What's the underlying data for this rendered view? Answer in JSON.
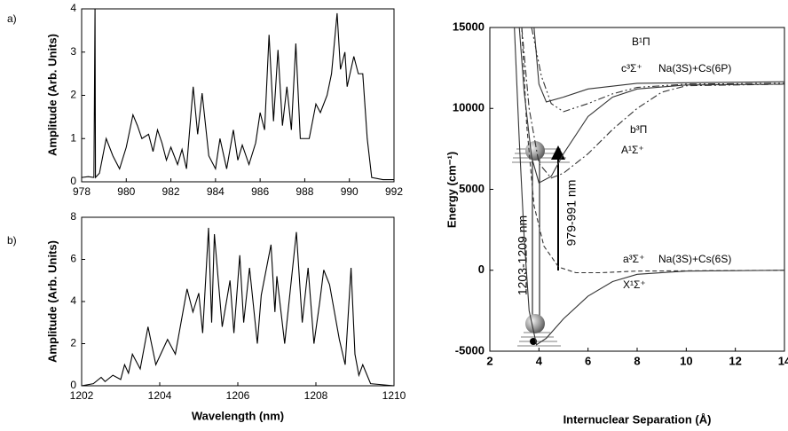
{
  "chart_data": [
    {
      "type": "line",
      "label": "a)",
      "ylabel": "Amplitude (Arb. Units)",
      "xlim": [
        978,
        992
      ],
      "ylim": [
        0,
        4
      ],
      "xticks": [
        978,
        980,
        982,
        984,
        986,
        988,
        990,
        992
      ],
      "yticks": [
        0,
        1,
        2,
        3,
        4
      ],
      "series": [
        {
          "color": "#000000",
          "x": [
            978,
            978.3,
            978.55,
            978.6,
            978.62,
            978.8,
            979.1,
            979.4,
            979.7,
            980.0,
            980.3,
            980.5,
            980.7,
            981.0,
            981.2,
            981.4,
            981.6,
            981.8,
            982.0,
            982.3,
            982.5,
            982.7,
            983.0,
            983.2,
            983.4,
            983.7,
            984.0,
            984.2,
            984.5,
            984.8,
            985.0,
            985.2,
            985.5,
            985.8,
            986.0,
            986.2,
            986.4,
            986.6,
            986.8,
            987.0,
            987.2,
            987.4,
            987.6,
            987.8,
            988.2,
            988.5,
            988.7,
            989.0,
            989.2,
            989.45,
            989.6,
            989.8,
            989.9,
            990.2,
            990.4,
            990.6,
            990.8,
            991.0,
            991.5,
            992
          ],
          "values": [
            0.1,
            0.12,
            0.1,
            4,
            0.1,
            0.2,
            1.0,
            0.6,
            0.3,
            0.8,
            1.55,
            1.3,
            1.0,
            1.1,
            0.7,
            1.2,
            0.9,
            0.5,
            0.8,
            0.4,
            0.75,
            0.3,
            2.2,
            1.1,
            2.05,
            0.6,
            0.3,
            1.0,
            0.3,
            1.2,
            0.5,
            0.85,
            0.4,
            0.9,
            1.6,
            1.2,
            3.4,
            1.4,
            3.05,
            1.3,
            2.2,
            1.2,
            3.2,
            1.0,
            1.0,
            1.8,
            1.6,
            2.0,
            2.5,
            3.9,
            2.6,
            3.0,
            2.2,
            2.9,
            2.5,
            2.5,
            1.0,
            0.1,
            0.05,
            0.05
          ]
        }
      ]
    },
    {
      "type": "line",
      "label": "b)",
      "xlabel": "Wavelength (nm)",
      "ylabel": "Amplitude (Arb. Units)",
      "xlim": [
        1202,
        1210
      ],
      "ylim": [
        0,
        8
      ],
      "xticks": [
        1202,
        1204,
        1206,
        1208,
        1210
      ],
      "yticks": [
        0,
        2,
        4,
        6,
        8
      ],
      "series": [
        {
          "color": "#000000",
          "x": [
            1202,
            1202.3,
            1202.5,
            1202.6,
            1202.8,
            1203.0,
            1203.1,
            1203.2,
            1203.3,
            1203.5,
            1203.7,
            1203.9,
            1204.2,
            1204.4,
            1204.7,
            1204.85,
            1205.0,
            1205.1,
            1205.25,
            1205.33,
            1205.4,
            1205.6,
            1205.8,
            1205.9,
            1206.05,
            1206.15,
            1206.3,
            1206.5,
            1206.6,
            1206.85,
            1206.95,
            1207.0,
            1207.2,
            1207.5,
            1207.65,
            1207.8,
            1207.95,
            1208.1,
            1208.2,
            1208.35,
            1208.6,
            1208.75,
            1208.9,
            1209.0,
            1209.1,
            1209.2,
            1209.4,
            1210
          ],
          "values": [
            0,
            0.1,
            0.4,
            0.2,
            0.5,
            0.3,
            1.0,
            0.6,
            1.5,
            0.8,
            2.8,
            1.0,
            2.2,
            1.5,
            4.6,
            3.5,
            4.4,
            2.5,
            7.5,
            3.0,
            7.2,
            2.8,
            5.0,
            2.5,
            6.2,
            3.0,
            5.6,
            2.0,
            4.3,
            6.7,
            3.5,
            5.2,
            2.0,
            7.3,
            3.0,
            5.6,
            2.0,
            4.0,
            5.5,
            4.8,
            2.2,
            1.0,
            5.6,
            1.5,
            0.5,
            1.0,
            0.1,
            0
          ]
        }
      ]
    },
    {
      "type": "line",
      "xlabel": "Internuclear Separation (Å)",
      "ylabel": "Energy (cm⁻¹)",
      "xlim": [
        2,
        14
      ],
      "ylim": [
        -5000,
        15000
      ],
      "xticks": [
        2,
        4,
        6,
        8,
        10,
        12,
        14
      ],
      "yticks": [
        -5000,
        0,
        5000,
        10000,
        15000
      ],
      "annotations": [
        "Na(3S)+Cs(6P)",
        "Na(3S)+Cs(6S)",
        "1203-1209 nm",
        "979-991 nm"
      ],
      "series": [
        {
          "name": "B¹Π",
          "color": "#333333",
          "dash": "solid",
          "x": [
            3.8,
            4.0,
            4.3,
            5,
            6,
            8,
            14
          ],
          "values": [
            15000,
            11500,
            10400,
            10700,
            11200,
            11550,
            11650
          ]
        },
        {
          "name": "c³Σ⁺",
          "color": "#333333",
          "dash": "dashdotdot",
          "x": [
            3.7,
            4.1,
            4.5,
            5,
            6,
            7,
            8,
            10,
            14
          ],
          "values": [
            15000,
            12000,
            10300,
            9800,
            10300,
            10900,
            11300,
            11500,
            11550
          ]
        },
        {
          "name": "b³Π",
          "color": "#333333",
          "dash": "dashdot",
          "x": [
            3.3,
            3.6,
            4.0,
            4.5,
            5,
            6,
            7,
            8,
            9,
            10,
            14
          ],
          "values": [
            15000,
            10000,
            6600,
            5700,
            6000,
            7200,
            8700,
            10000,
            11000,
            11400,
            11500
          ]
        },
        {
          "name": "A¹Σ⁺",
          "color": "#333333",
          "dash": "solid",
          "x": [
            3.2,
            3.4,
            3.7,
            4.0,
            4.5,
            5,
            6,
            7,
            8,
            10,
            14
          ],
          "values": [
            15000,
            11000,
            7000,
            5400,
            5800,
            7200,
            9500,
            10700,
            11200,
            11450,
            11500
          ]
        },
        {
          "name": "a³Σ⁺",
          "color": "#333333",
          "dash": "dashed",
          "x": [
            3.3,
            3.5,
            3.8,
            4.2,
            4.8,
            5.5,
            6.5,
            8,
            14
          ],
          "values": [
            15000,
            9000,
            4000,
            1500,
            200,
            -150,
            -150,
            -50,
            0
          ]
        },
        {
          "name": "X¹Σ⁺",
          "color": "#333333",
          "dash": "solid",
          "x": [
            3.0,
            3.2,
            3.4,
            3.6,
            3.9,
            4.3,
            5,
            6,
            7,
            8,
            10,
            14
          ],
          "values": [
            15000,
            8000,
            2000,
            -2500,
            -4600,
            -4200,
            -3000,
            -1600,
            -700,
            -250,
            -50,
            0
          ]
        }
      ]
    }
  ]
}
